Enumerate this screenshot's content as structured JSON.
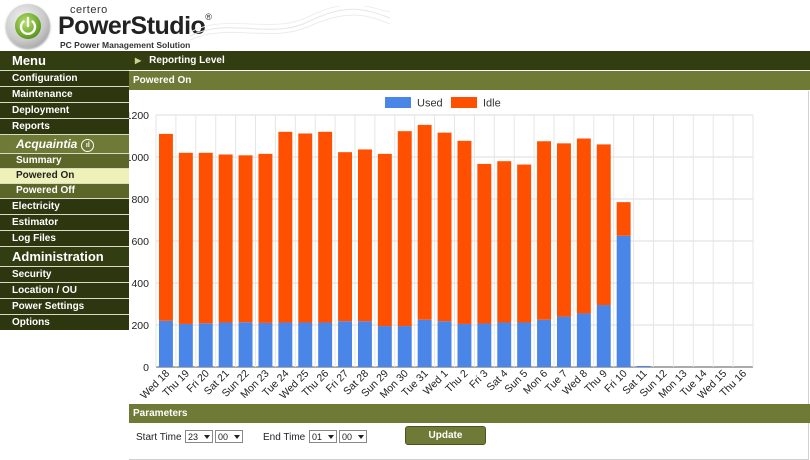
{
  "header": {
    "brand_small": "certero",
    "brand_main": "PowerStudio",
    "brand_reg": "®",
    "tagline": "PC Power Management Solution"
  },
  "sidebar": {
    "menu_title": "Menu",
    "menu_items": [
      "Configuration",
      "Maintenance",
      "Deployment",
      "Reports"
    ],
    "acquaintia_label": "Acquaintia",
    "acquaintia_items": [
      {
        "label": "Summary",
        "active": false
      },
      {
        "label": "Powered On",
        "active": true
      },
      {
        "label": "Powered Off",
        "active": false
      }
    ],
    "menu_items_2": [
      "Electricity",
      "Estimator",
      "Log Files"
    ],
    "admin_title": "Administration",
    "admin_items": [
      "Security",
      "Location / OU",
      "Power Settings",
      "Options"
    ]
  },
  "main": {
    "reporting_level_label": "Reporting Level",
    "section_title": "Powered On",
    "parameters_title": "Parameters",
    "start_time_label": "Start Time",
    "start_hour": "23",
    "start_minute": "00",
    "end_time_label": "End Time",
    "end_hour": "01",
    "end_minute": "00",
    "update_label": "Update"
  },
  "colors": {
    "used": "#4a86e8",
    "idle": "#ff4f00",
    "dark_olive": "#333d12",
    "olive": "#6f7a36"
  },
  "chart_data": {
    "type": "bar",
    "stacked": true,
    "categories": [
      "Wed 18",
      "Thu 19",
      "Fri 20",
      "Sat 21",
      "Sun 22",
      "Mon 23",
      "Tue 24",
      "Wed 25",
      "Thu 26",
      "Fri 27",
      "Sat 28",
      "Sun 29",
      "Mon 30",
      "Tue 31",
      "Wed 1",
      "Thu 2",
      "Fri 3",
      "Sat 4",
      "Sun 5",
      "Mon 6",
      "Tue 7",
      "Wed 8",
      "Thu 9",
      "Fri 10",
      "Sat 11",
      "Sun 12",
      "Mon 13",
      "Tue 14",
      "Wed 15",
      "Thu 16"
    ],
    "series": [
      {
        "name": "Used",
        "color": "#4a86e8",
        "values": [
          220,
          205,
          208,
          212,
          213,
          210,
          212,
          212,
          212,
          218,
          218,
          195,
          195,
          225,
          218,
          205,
          207,
          212,
          212,
          225,
          240,
          255,
          295,
          625,
          5,
          0,
          0,
          0,
          0,
          0
        ]
      },
      {
        "name": "Idle",
        "color": "#ff4f00",
        "values": [
          890,
          815,
          812,
          800,
          795,
          805,
          908,
          900,
          908,
          805,
          818,
          820,
          928,
          928,
          898,
          872,
          760,
          768,
          752,
          850,
          825,
          833,
          765,
          160,
          0,
          0,
          0,
          0,
          0,
          0
        ]
      }
    ],
    "ylim": [
      0,
      1200
    ],
    "yticks": [
      0,
      200,
      400,
      600,
      800,
      1000,
      1200
    ],
    "grid": true,
    "legend_position": "top"
  }
}
